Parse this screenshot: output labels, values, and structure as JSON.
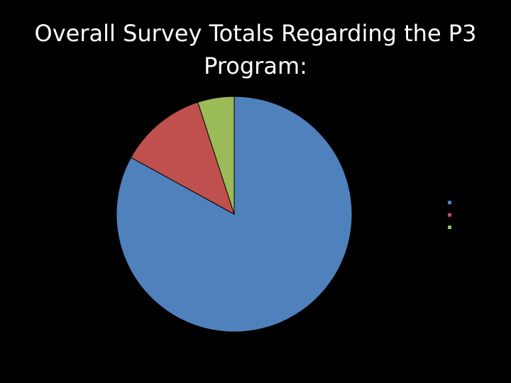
{
  "chart_data": {
    "type": "pie",
    "title": "Overall Survey Totals Regarding the P3 Program:",
    "values": [
      83,
      12,
      5
    ],
    "colors": [
      "#4f81bd",
      "#c0504d",
      "#9bbb59"
    ],
    "legend": "right"
  }
}
